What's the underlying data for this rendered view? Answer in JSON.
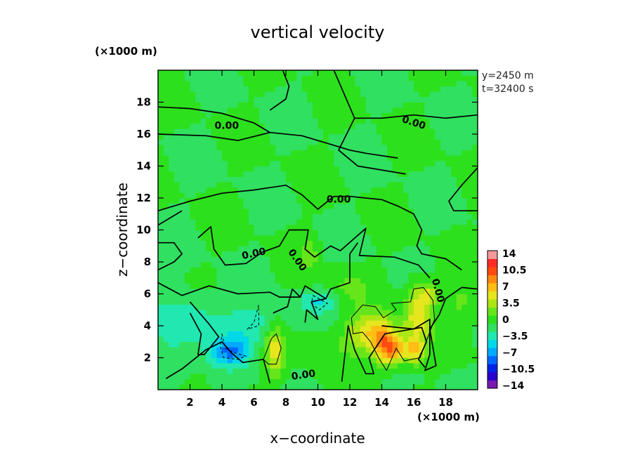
{
  "chart_data": {
    "type": "heatmap",
    "title": "vertical velocity",
    "xlabel": "x−coordinate",
    "ylabel": "z−coordinate",
    "x_unit": "(×1000 m)",
    "y_unit": "(×1000 m)",
    "xlim": [
      0,
      20
    ],
    "ylim": [
      0,
      20
    ],
    "x_ticks": [
      "2",
      "4",
      "6",
      "8",
      "10",
      "12",
      "14",
      "16",
      "18"
    ],
    "y_ticks": [
      "2",
      "4",
      "6",
      "8",
      "10",
      "12",
      "14",
      "16",
      "18"
    ],
    "info": [
      "y=2450 m",
      "t=32400 s"
    ],
    "colorbar": {
      "labels": [
        "14",
        "10.5",
        "7",
        "3.5",
        "0",
        "−3.5",
        "−7",
        "−10.5",
        "−14"
      ],
      "levels": [
        -14,
        -12.25,
        -10.5,
        -8.75,
        -7,
        -5.25,
        -3.5,
        -1.75,
        0,
        1.75,
        3.5,
        5.25,
        7,
        8.75,
        10.5,
        12.25,
        14
      ],
      "colors": [
        "#7a1ab0",
        "#2a00cc",
        "#0022e6",
        "#0066ff",
        "#00aaff",
        "#00d8e8",
        "#20e8b0",
        "#30e060",
        "#2ce01c",
        "#66e61a",
        "#aee614",
        "#e6e61e",
        "#ffbe14",
        "#ff8a10",
        "#ff4a10",
        "#ff2a2a",
        "#f49a9a"
      ]
    },
    "contour_labels": [
      "0.00",
      "0.00",
      "0.00",
      "0.00",
      "0.00",
      "0.00",
      "0.00"
    ],
    "blobs": [
      {
        "x": 2.0,
        "z": 4.5,
        "rx": 2.2,
        "rz": 1.6,
        "w": -3
      },
      {
        "x": 4.5,
        "z": 2.4,
        "rx": 1.2,
        "rz": 0.9,
        "w": -6.5
      },
      {
        "x": 6.0,
        "z": 4.0,
        "rx": 1.8,
        "rz": 1.3,
        "w": -3
      },
      {
        "x": 10.0,
        "z": 5.5,
        "rx": 1.2,
        "rz": 0.6,
        "w": -3.5
      },
      {
        "x": 1.0,
        "z": 1.5,
        "rx": 1.2,
        "rz": 1.5,
        "w": -2
      },
      {
        "x": 7.3,
        "z": 2.5,
        "rx": 0.6,
        "rz": 1.6,
        "w": 6
      },
      {
        "x": 13.5,
        "z": 3.5,
        "rx": 1.6,
        "rz": 1.2,
        "w": 7.5
      },
      {
        "x": 14.5,
        "z": 2.5,
        "rx": 0.8,
        "rz": 1.0,
        "w": 9.5
      },
      {
        "x": 16.3,
        "z": 4.8,
        "rx": 0.8,
        "rz": 1.8,
        "w": 7
      },
      {
        "x": 16.0,
        "z": 2.4,
        "rx": 0.7,
        "rz": 0.8,
        "w": 7
      },
      {
        "x": 17.0,
        "z": 6.0,
        "rx": 0.6,
        "rz": 0.6,
        "w": 4
      },
      {
        "x": 10.5,
        "z": 2.5,
        "rx": 1.5,
        "rz": 1.2,
        "w": 1.5
      },
      {
        "x": 19.0,
        "z": 5.5,
        "rx": 1.2,
        "rz": 1.5,
        "w": 2
      },
      {
        "x": 9.5,
        "z": 8.5,
        "rx": 0.5,
        "rz": 1.0,
        "w": 2.5
      },
      {
        "x": 12.0,
        "z": 6.5,
        "rx": 1.2,
        "rz": 1.2,
        "w": 2
      }
    ]
  }
}
